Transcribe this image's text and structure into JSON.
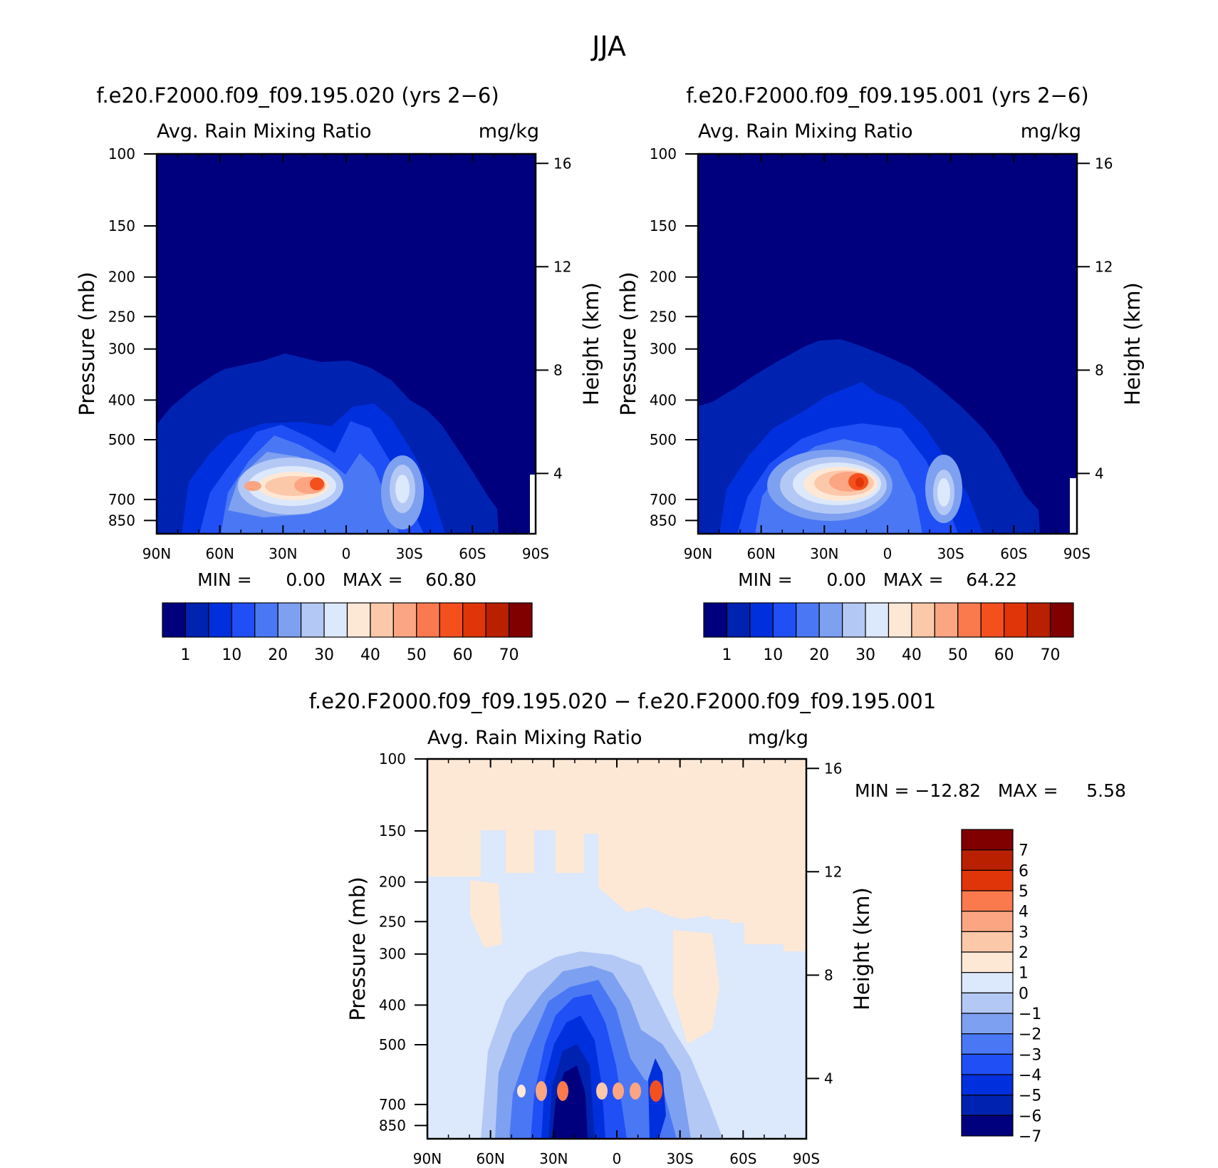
{
  "page_title": "JJA",
  "chart_data": [
    {
      "type": "heatmap",
      "title": "f.e20.F2000.f09_f09.195.020 (yrs 2−6)",
      "subtitle_left": "Avg. Rain Mixing Ratio",
      "subtitle_right": "mg/kg",
      "ylabel": "Pressure (mb)",
      "y2label": "Height (km)",
      "xticks": [
        "90N",
        "60N",
        "30N",
        "0",
        "30S",
        "60S",
        "90S"
      ],
      "yticks": [
        100,
        150,
        200,
        250,
        300,
        400,
        500,
        700,
        850
      ],
      "y2ticks": [
        16,
        12,
        8,
        4
      ],
      "minmax_text": "MIN =      0.00   MAX =    60.80",
      "colorbar_labels": [
        "1",
        "10",
        "20",
        "30",
        "40",
        "50",
        "60",
        "70"
      ],
      "colorbar_colors": [
        "#00007f",
        "#0022b0",
        "#0030dd",
        "#1f4ff5",
        "#4a78f5",
        "#7ea0f0",
        "#b4c8f5",
        "#dce8fb",
        "#fde8d6",
        "#fcc8aa",
        "#fba582",
        "#fa7a4e",
        "#f4501e",
        "#e03508",
        "#b82000",
        "#800000"
      ]
    },
    {
      "type": "heatmap",
      "title": "f.e20.F2000.f09_f09.195.001 (yrs 2−6)",
      "subtitle_left": "Avg. Rain Mixing Ratio",
      "subtitle_right": "mg/kg",
      "ylabel": "Pressure (mb)",
      "y2label": "Height (km)",
      "xticks": [
        "90N",
        "60N",
        "30N",
        "0",
        "30S",
        "60S",
        "90S"
      ],
      "yticks": [
        100,
        150,
        200,
        250,
        300,
        400,
        500,
        700,
        850
      ],
      "y2ticks": [
        16,
        12,
        8,
        4
      ],
      "minmax_text": "MIN =      0.00   MAX =    64.22",
      "colorbar_labels": [
        "1",
        "10",
        "20",
        "30",
        "40",
        "50",
        "60",
        "70"
      ],
      "colorbar_colors": [
        "#00007f",
        "#0022b0",
        "#0030dd",
        "#1f4ff5",
        "#4a78f5",
        "#7ea0f0",
        "#b4c8f5",
        "#dce8fb",
        "#fde8d6",
        "#fcc8aa",
        "#fba582",
        "#fa7a4e",
        "#f4501e",
        "#e03508",
        "#b82000",
        "#800000"
      ]
    },
    {
      "type": "heatmap",
      "title": "f.e20.F2000.f09_f09.195.020 − f.e20.F2000.f09_f09.195.001",
      "subtitle_left": "Avg. Rain Mixing Ratio",
      "subtitle_right": "mg/kg",
      "ylabel": "Pressure (mb)",
      "y2label": "Height (km)",
      "xticks": [
        "90N",
        "60N",
        "30N",
        "0",
        "30S",
        "60S",
        "90S"
      ],
      "yticks": [
        100,
        150,
        200,
        250,
        300,
        400,
        500,
        700,
        850
      ],
      "y2ticks": [
        16,
        12,
        8,
        4
      ],
      "minmax_text": "MIN = −12.82   MAX =     5.58",
      "colorbar_labels": [
        "7",
        "6",
        "5",
        "4",
        "3",
        "2",
        "1",
        "0",
        "−1",
        "−2",
        "−3",
        "−4",
        "−5",
        "−6",
        "−7"
      ],
      "colorbar_colors": [
        "#800000",
        "#b82000",
        "#e03508",
        "#fa7a4e",
        "#fba582",
        "#fcc8aa",
        "#fde8d6",
        "#dce8fb",
        "#b4c8f5",
        "#7ea0f0",
        "#4a78f5",
        "#1f4ff5",
        "#0030dd",
        "#0022b0",
        "#00007f"
      ]
    }
  ]
}
